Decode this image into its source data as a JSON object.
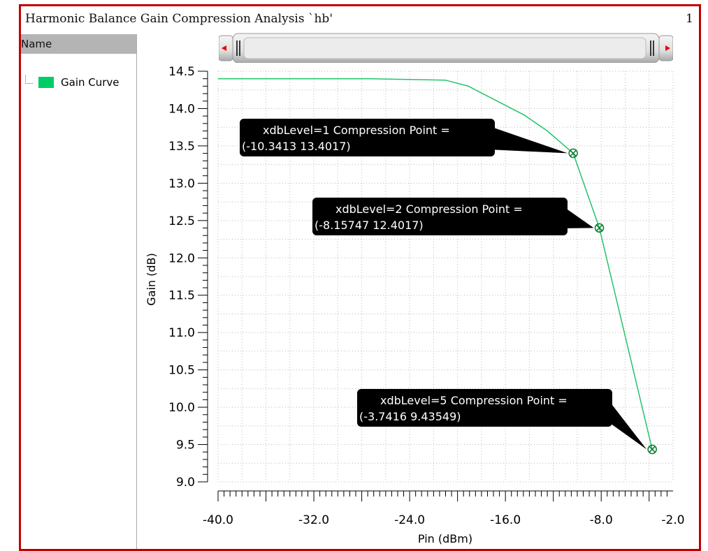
{
  "window": {
    "title": "Harmonic Balance Gain Compression Analysis `hb'",
    "page": "1"
  },
  "panel": {
    "header": "Name",
    "legend_label": "Gain Curve"
  },
  "colors": {
    "curve": "#22c46a",
    "legend": "#00cc66",
    "frame": "#c00000"
  },
  "chart_data": {
    "type": "line",
    "xlabel": "Pin (dBm)",
    "ylabel": "Gain (dB)",
    "xlim": [
      -40,
      -2
    ],
    "ylim": [
      9.0,
      14.5
    ],
    "xticks": [
      "-40.0",
      "-32.0",
      "-24.0",
      "-16.0",
      "-8.0",
      "-2.0"
    ],
    "yticks": [
      "9.0",
      "9.5",
      "10.0",
      "10.5",
      "11.0",
      "11.5",
      "12.0",
      "12.5",
      "13.0",
      "13.5",
      "14.0",
      "14.5"
    ],
    "grid": true,
    "series": [
      {
        "name": "Gain Curve",
        "x": [
          -40,
          -27.3,
          -21,
          -19.1,
          -14.4,
          -12.5,
          -10.3413,
          -8.15747,
          -3.7416
        ],
        "y": [
          14.4,
          14.4,
          14.38,
          14.3,
          13.91,
          13.7,
          13.4017,
          12.4017,
          9.43549
        ]
      }
    ],
    "annotations": [
      {
        "line1": "xdbLevel=1 Compression Point =",
        "line2": "(-10.3413 13.4017)",
        "x": -10.3413,
        "y": 13.4017
      },
      {
        "line1": "xdbLevel=2 Compression Point =",
        "line2": "(-8.15747 12.4017)",
        "x": -8.15747,
        "y": 12.4017
      },
      {
        "line1": "xdbLevel=5 Compression Point =",
        "line2": "(-3.7416 9.43549)",
        "x": -3.7416,
        "y": 9.43549
      }
    ]
  }
}
